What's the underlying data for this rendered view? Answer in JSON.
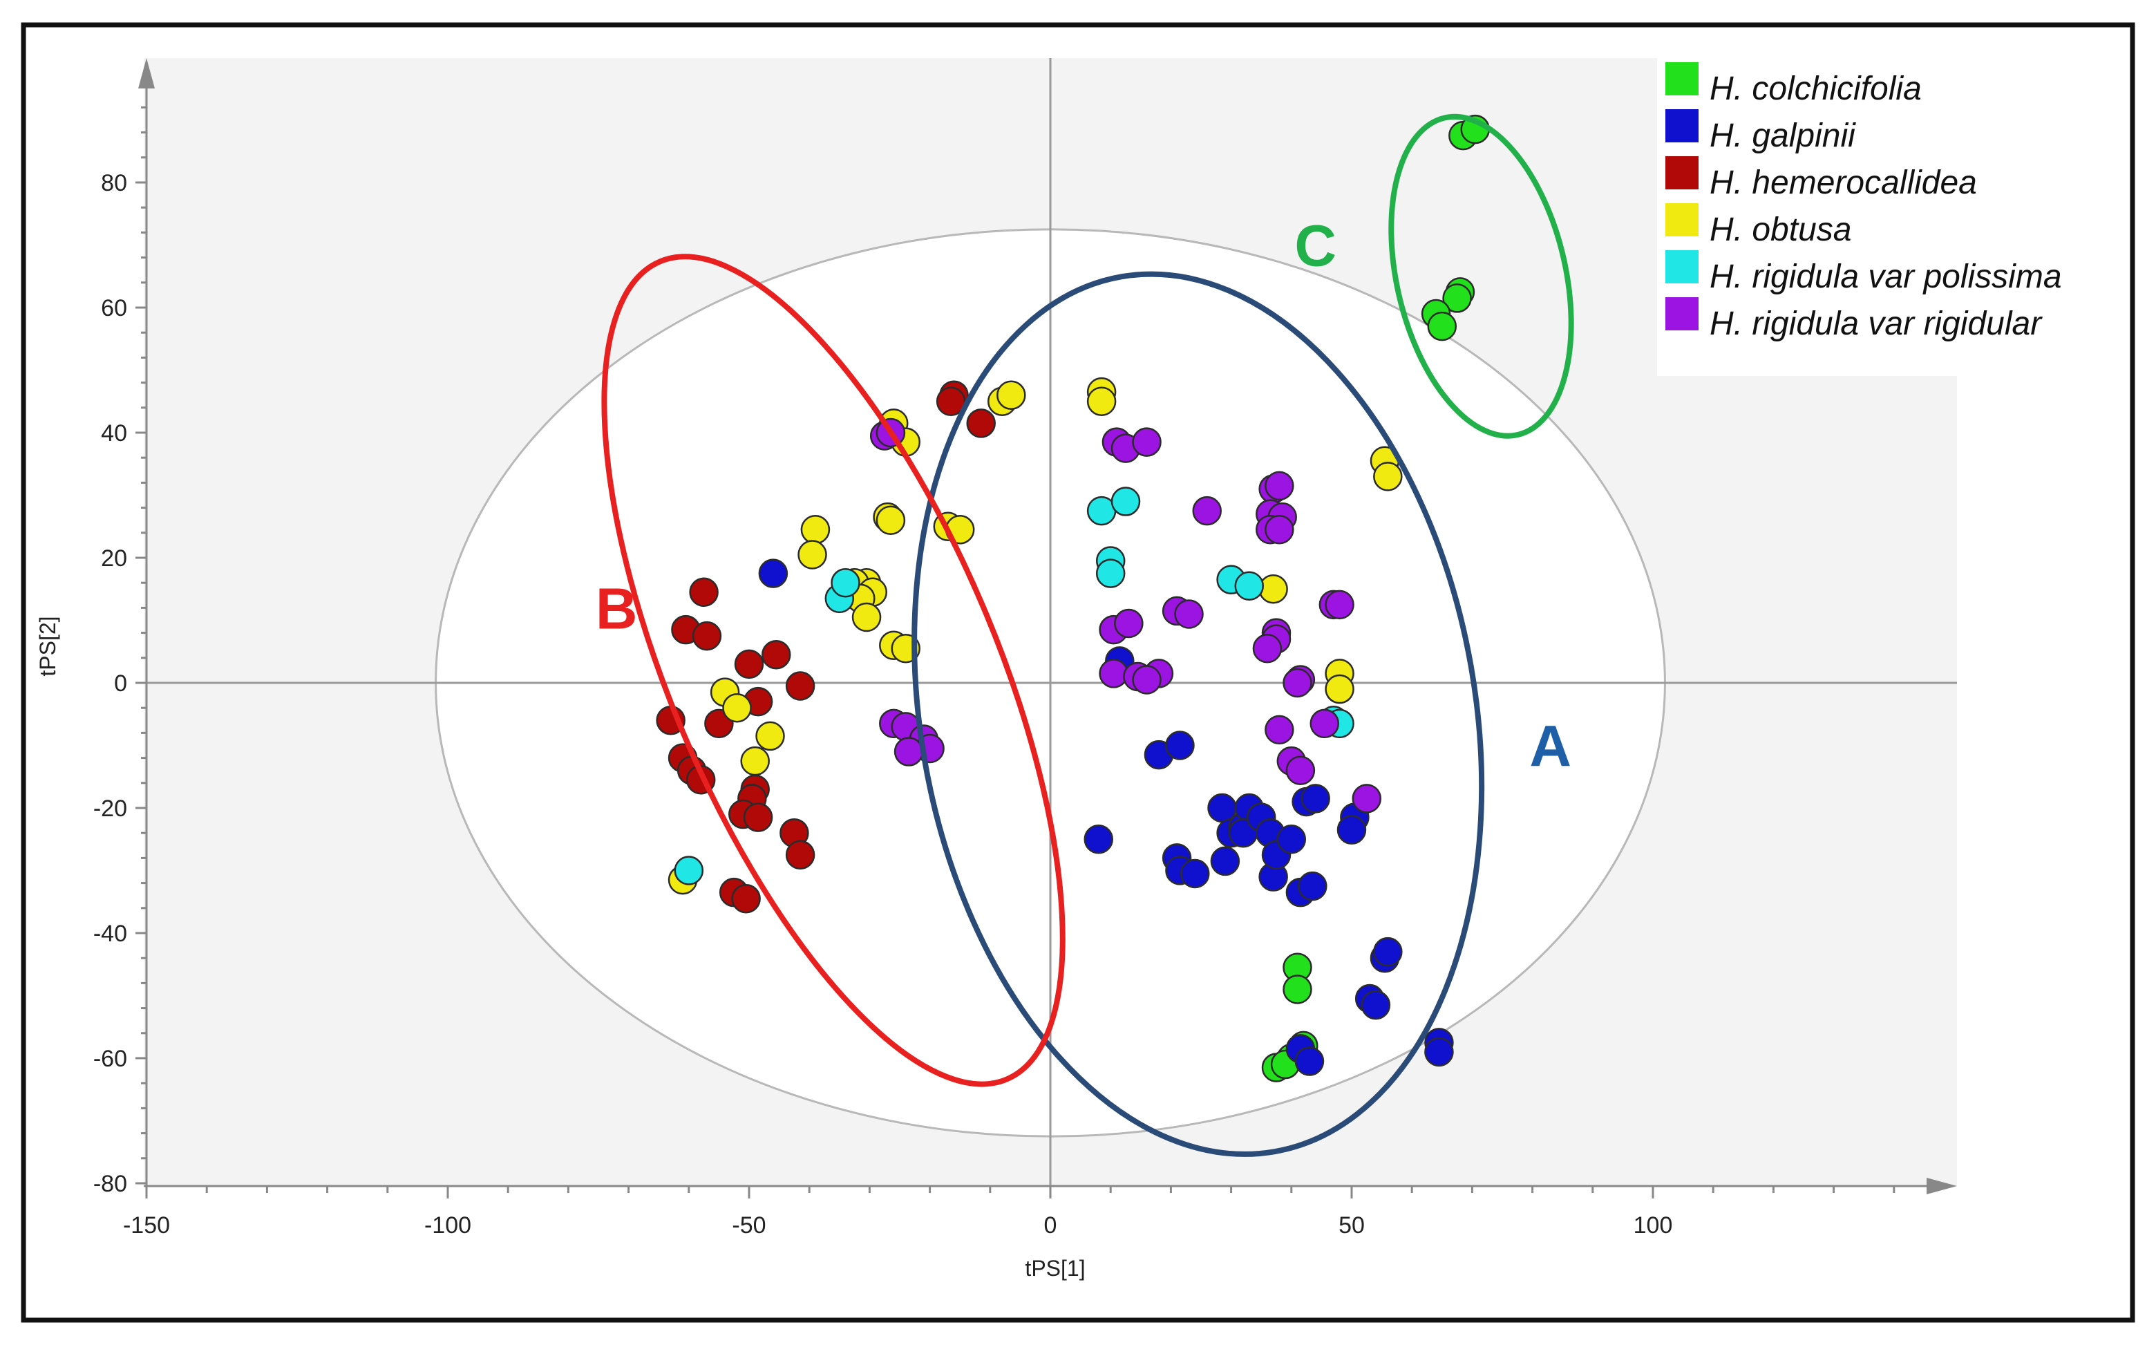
{
  "chart_data": {
    "type": "scatter",
    "xlabel": "tPS[1]",
    "ylabel": "tPS[2]",
    "xlim": [
      -150,
      150
    ],
    "ylim": [
      -80,
      100
    ],
    "x_ticks": [
      "-150",
      "-100",
      "-50",
      "0",
      "50",
      "100"
    ],
    "x_tick_values": [
      -150,
      -100,
      -50,
      0,
      50,
      100
    ],
    "y_ticks": [
      "80",
      "60",
      "40",
      "20",
      "0",
      "-20",
      "-40",
      "-60",
      "-80"
    ],
    "y_tick_values": [
      80,
      60,
      40,
      20,
      0,
      -20,
      -40,
      -60,
      -80
    ],
    "hotelling_ellipse": {
      "center": [
        0,
        0
      ],
      "semi_axes": [
        102,
        72.5
      ]
    },
    "clusters": [
      {
        "label": "A",
        "color": "#1f5fa8",
        "stroke": "#2a4a78",
        "center": [
          24.5,
          -5
        ],
        "semi_axes": [
          46,
          71
        ],
        "angle_deg": 10,
        "label_pos": [
          83,
          -10
        ]
      },
      {
        "label": "B",
        "color": "#e8201f",
        "stroke": "#e8201f",
        "center": [
          -36,
          2
        ],
        "semi_axes": [
          27,
          71
        ],
        "angle_deg": 23,
        "label_pos": [
          -72,
          12
        ]
      },
      {
        "label": "C",
        "color": "#22b04a",
        "stroke": "#22b04a",
        "center": [
          71.5,
          65
        ],
        "semi_axes": [
          14,
          26
        ],
        "angle_deg": 13,
        "label_pos": [
          -31,
          70
        ]
      }
    ],
    "series": [
      {
        "name": "H. colchicifolia",
        "color": "#22e01c",
        "points": [
          [
            68.5,
            87.5
          ],
          [
            70.5,
            88.5
          ],
          [
            68,
            62.5
          ],
          [
            67.5,
            61.5
          ],
          [
            64,
            59
          ],
          [
            65,
            57
          ],
          [
            41,
            -45.5
          ],
          [
            41,
            -49
          ],
          [
            42,
            -58
          ],
          [
            40,
            -60
          ],
          [
            37.5,
            -61.5
          ],
          [
            39,
            -61
          ]
        ]
      },
      {
        "name": "H. galpinii",
        "color": "#1010cf",
        "points": [
          [
            -46,
            17.5
          ],
          [
            11.5,
            3.5
          ],
          [
            8,
            -25
          ],
          [
            18,
            -11.5
          ],
          [
            21.5,
            -10
          ],
          [
            21,
            -28
          ],
          [
            21.5,
            -30
          ],
          [
            24,
            -30.5
          ],
          [
            28.5,
            -20
          ],
          [
            29,
            -28.5
          ],
          [
            30,
            -24
          ],
          [
            32,
            -23
          ],
          [
            33,
            -20
          ],
          [
            32,
            -24
          ],
          [
            35,
            -21.5
          ],
          [
            36.5,
            -24
          ],
          [
            37,
            -31
          ],
          [
            37.5,
            -27.5
          ],
          [
            40,
            -25
          ],
          [
            41.5,
            -33.5
          ],
          [
            43.5,
            -32.5
          ],
          [
            42.5,
            -19
          ],
          [
            44,
            -18.5
          ],
          [
            50.5,
            -21.5
          ],
          [
            50,
            -23.5
          ],
          [
            53,
            -50.5
          ],
          [
            54,
            -51.5
          ],
          [
            55.5,
            -44
          ],
          [
            56,
            -43
          ],
          [
            41.5,
            -58.5
          ],
          [
            43,
            -60.5
          ],
          [
            64.5,
            -57.5
          ],
          [
            64.5,
            -59
          ]
        ]
      },
      {
        "name": "H. hemerocallidea",
        "color": "#b10808",
        "points": [
          [
            -57.5,
            14.5
          ],
          [
            -60.5,
            8.5
          ],
          [
            -57,
            7.5
          ],
          [
            -50,
            3
          ],
          [
            -45.5,
            4.5
          ],
          [
            -41.5,
            -0.5
          ],
          [
            -48.5,
            -3
          ],
          [
            -55,
            -6.5
          ],
          [
            -63,
            -6
          ],
          [
            -61,
            -12
          ],
          [
            -59.5,
            -14
          ],
          [
            -58,
            -15.5
          ],
          [
            -49,
            -17
          ],
          [
            -49.5,
            -18.5
          ],
          [
            -51,
            -21
          ],
          [
            -48.5,
            -21.5
          ],
          [
            -42.5,
            -24
          ],
          [
            -41.5,
            -27.5
          ],
          [
            -52.5,
            -33.5
          ],
          [
            -50.5,
            -34.5
          ],
          [
            -16,
            46
          ],
          [
            -16.5,
            45
          ],
          [
            -11.5,
            41.5
          ]
        ]
      },
      {
        "name": "H. obtusa",
        "color": "#f0ea10",
        "points": [
          [
            -26,
            41.5
          ],
          [
            -24,
            38.5
          ],
          [
            -39,
            24.5
          ],
          [
            -39.5,
            20.5
          ],
          [
            -27,
            26.5
          ],
          [
            -26.5,
            26
          ],
          [
            -17,
            25
          ],
          [
            -15,
            24.5
          ],
          [
            -30.5,
            16
          ],
          [
            -32.5,
            16
          ],
          [
            -29.5,
            14.5
          ],
          [
            -31.5,
            13.5
          ],
          [
            -30.5,
            10.5
          ],
          [
            -26,
            6
          ],
          [
            -24,
            5.5
          ],
          [
            -54,
            -1.5
          ],
          [
            -52,
            -4
          ],
          [
            -46.5,
            -8.5
          ],
          [
            -49,
            -12.5
          ],
          [
            -61,
            -31.5
          ],
          [
            -8,
            45
          ],
          [
            -6.5,
            46
          ],
          [
            8.5,
            46.5
          ],
          [
            8.5,
            45
          ],
          [
            55.5,
            35.5
          ],
          [
            56,
            33
          ],
          [
            37,
            15
          ],
          [
            48,
            1.5
          ],
          [
            48,
            -1
          ]
        ]
      },
      {
        "name": "H. rigidula var polissima",
        "color": "#20e6e6",
        "points": [
          [
            -60,
            -30
          ],
          [
            -35,
            13.5
          ],
          [
            -34,
            16
          ],
          [
            8.5,
            27.5
          ],
          [
            12.5,
            29
          ],
          [
            10,
            19.5
          ],
          [
            10,
            17.5
          ],
          [
            30,
            16.5
          ],
          [
            33,
            15.5
          ],
          [
            47,
            -6
          ],
          [
            48,
            -6.5
          ]
        ]
      },
      {
        "name": "H. rigidula var rigidular",
        "color": "#9b14e2",
        "points": [
          [
            -27.5,
            39.5
          ],
          [
            -26.5,
            40
          ],
          [
            -26,
            -6.5
          ],
          [
            -24,
            -7
          ],
          [
            -21,
            -9
          ],
          [
            -20,
            -10.5
          ],
          [
            -23.5,
            -11
          ],
          [
            11,
            38.5
          ],
          [
            12.5,
            37.5
          ],
          [
            16,
            38.5
          ],
          [
            26,
            27.5
          ],
          [
            37,
            31
          ],
          [
            38,
            31.5
          ],
          [
            36.5,
            27
          ],
          [
            38.5,
            26.5
          ],
          [
            36.5,
            24.5
          ],
          [
            38,
            24.5
          ],
          [
            21,
            11.5
          ],
          [
            23,
            11
          ],
          [
            10.5,
            8.5
          ],
          [
            13,
            9.5
          ],
          [
            10.5,
            1.5
          ],
          [
            14.5,
            1
          ],
          [
            18,
            1.5
          ],
          [
            16,
            0.5
          ],
          [
            38,
            -7.5
          ],
          [
            40,
            -12.5
          ],
          [
            41.5,
            -14
          ],
          [
            41.5,
            0.5
          ],
          [
            41,
            0
          ],
          [
            37.5,
            8
          ],
          [
            37.5,
            7
          ],
          [
            36,
            5.5
          ],
          [
            47,
            12.5
          ],
          [
            48,
            12.5
          ],
          [
            45.5,
            -6.5
          ],
          [
            52.5,
            -18.5
          ]
        ]
      }
    ]
  }
}
